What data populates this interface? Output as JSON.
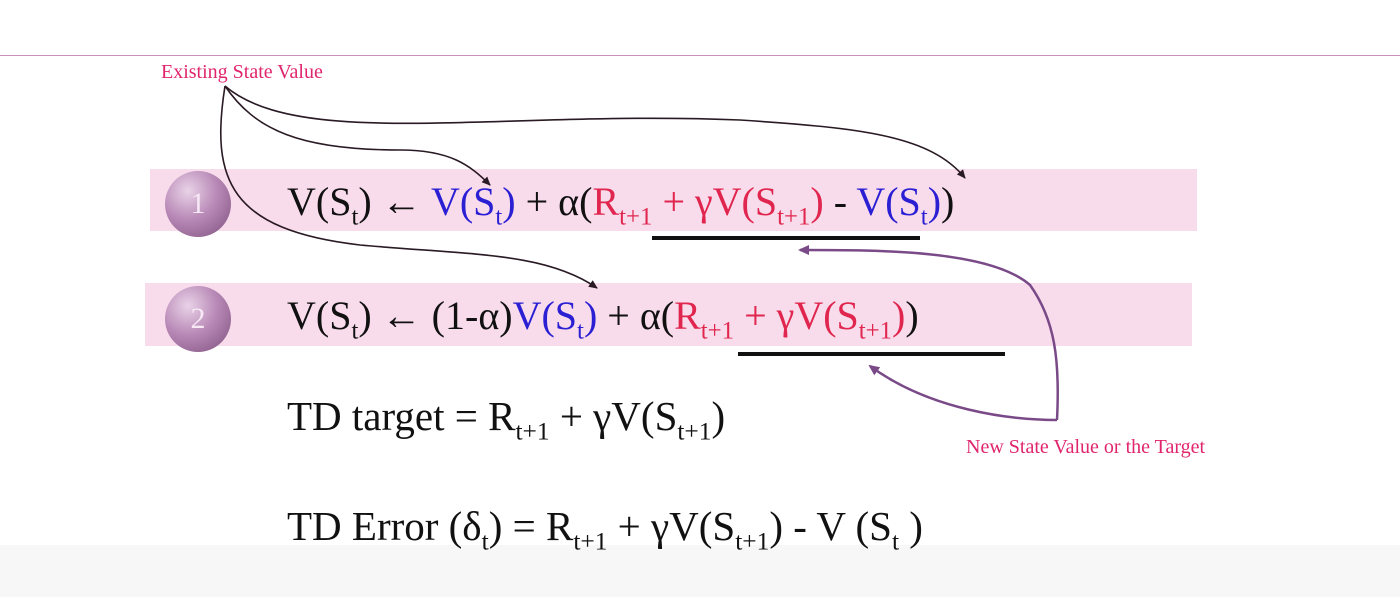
{
  "annotations": {
    "existing": "Existing State Value",
    "target": "New State Value or the Target"
  },
  "steps": {
    "one": "1",
    "two": "2"
  },
  "eq1": {
    "v": "V(S",
    "t": "t",
    "arrow": ") ← ",
    "v_blue": "V(S",
    "t_blue": "t",
    "close_blue": ")",
    "plus_alpha": " + α(",
    "r": "R",
    "t1": "t+1",
    "gamma_v": " + γV(S",
    "t1b": "t+1",
    "close_red": ")",
    "minus": " - ",
    "v_blue2": "V(S",
    "t_blue2": "t",
    "close_blue2": ")",
    "end": ")"
  },
  "eq2": {
    "v": "V(S",
    "t": "t",
    "arrow": ") ← ",
    "one_minus": "(1-α)",
    "v_blue": "V(S",
    "t_blue": "t",
    "close_blue": ")",
    "plus_alpha": " + α(",
    "r": "R",
    "t1": "t+1",
    "gamma_v": " + γV(S",
    "t1b": "t+1",
    "close_red": ")",
    "end": ")"
  },
  "td_target": {
    "label": "TD target = R",
    "t1": "t+1",
    "gamma_v": " + γV(S",
    "t1b": "t+1",
    "end": ")"
  },
  "td_error": {
    "label": "TD Error (δ",
    "t": "t",
    "eq_r": ") = R",
    "t1": "t+1",
    "gamma_v": " + γV(S",
    "t1b": "t+1",
    "minus_v": ") -  V (S",
    "t2": "t",
    "end": " )"
  },
  "colors": {
    "blue": "#2b1fd3",
    "red": "#e0264e",
    "band": "#f9dcec",
    "annotation": "#e0256d",
    "arrow_dark": "#2a1a24",
    "arrow_purple": "#7a4a88"
  }
}
